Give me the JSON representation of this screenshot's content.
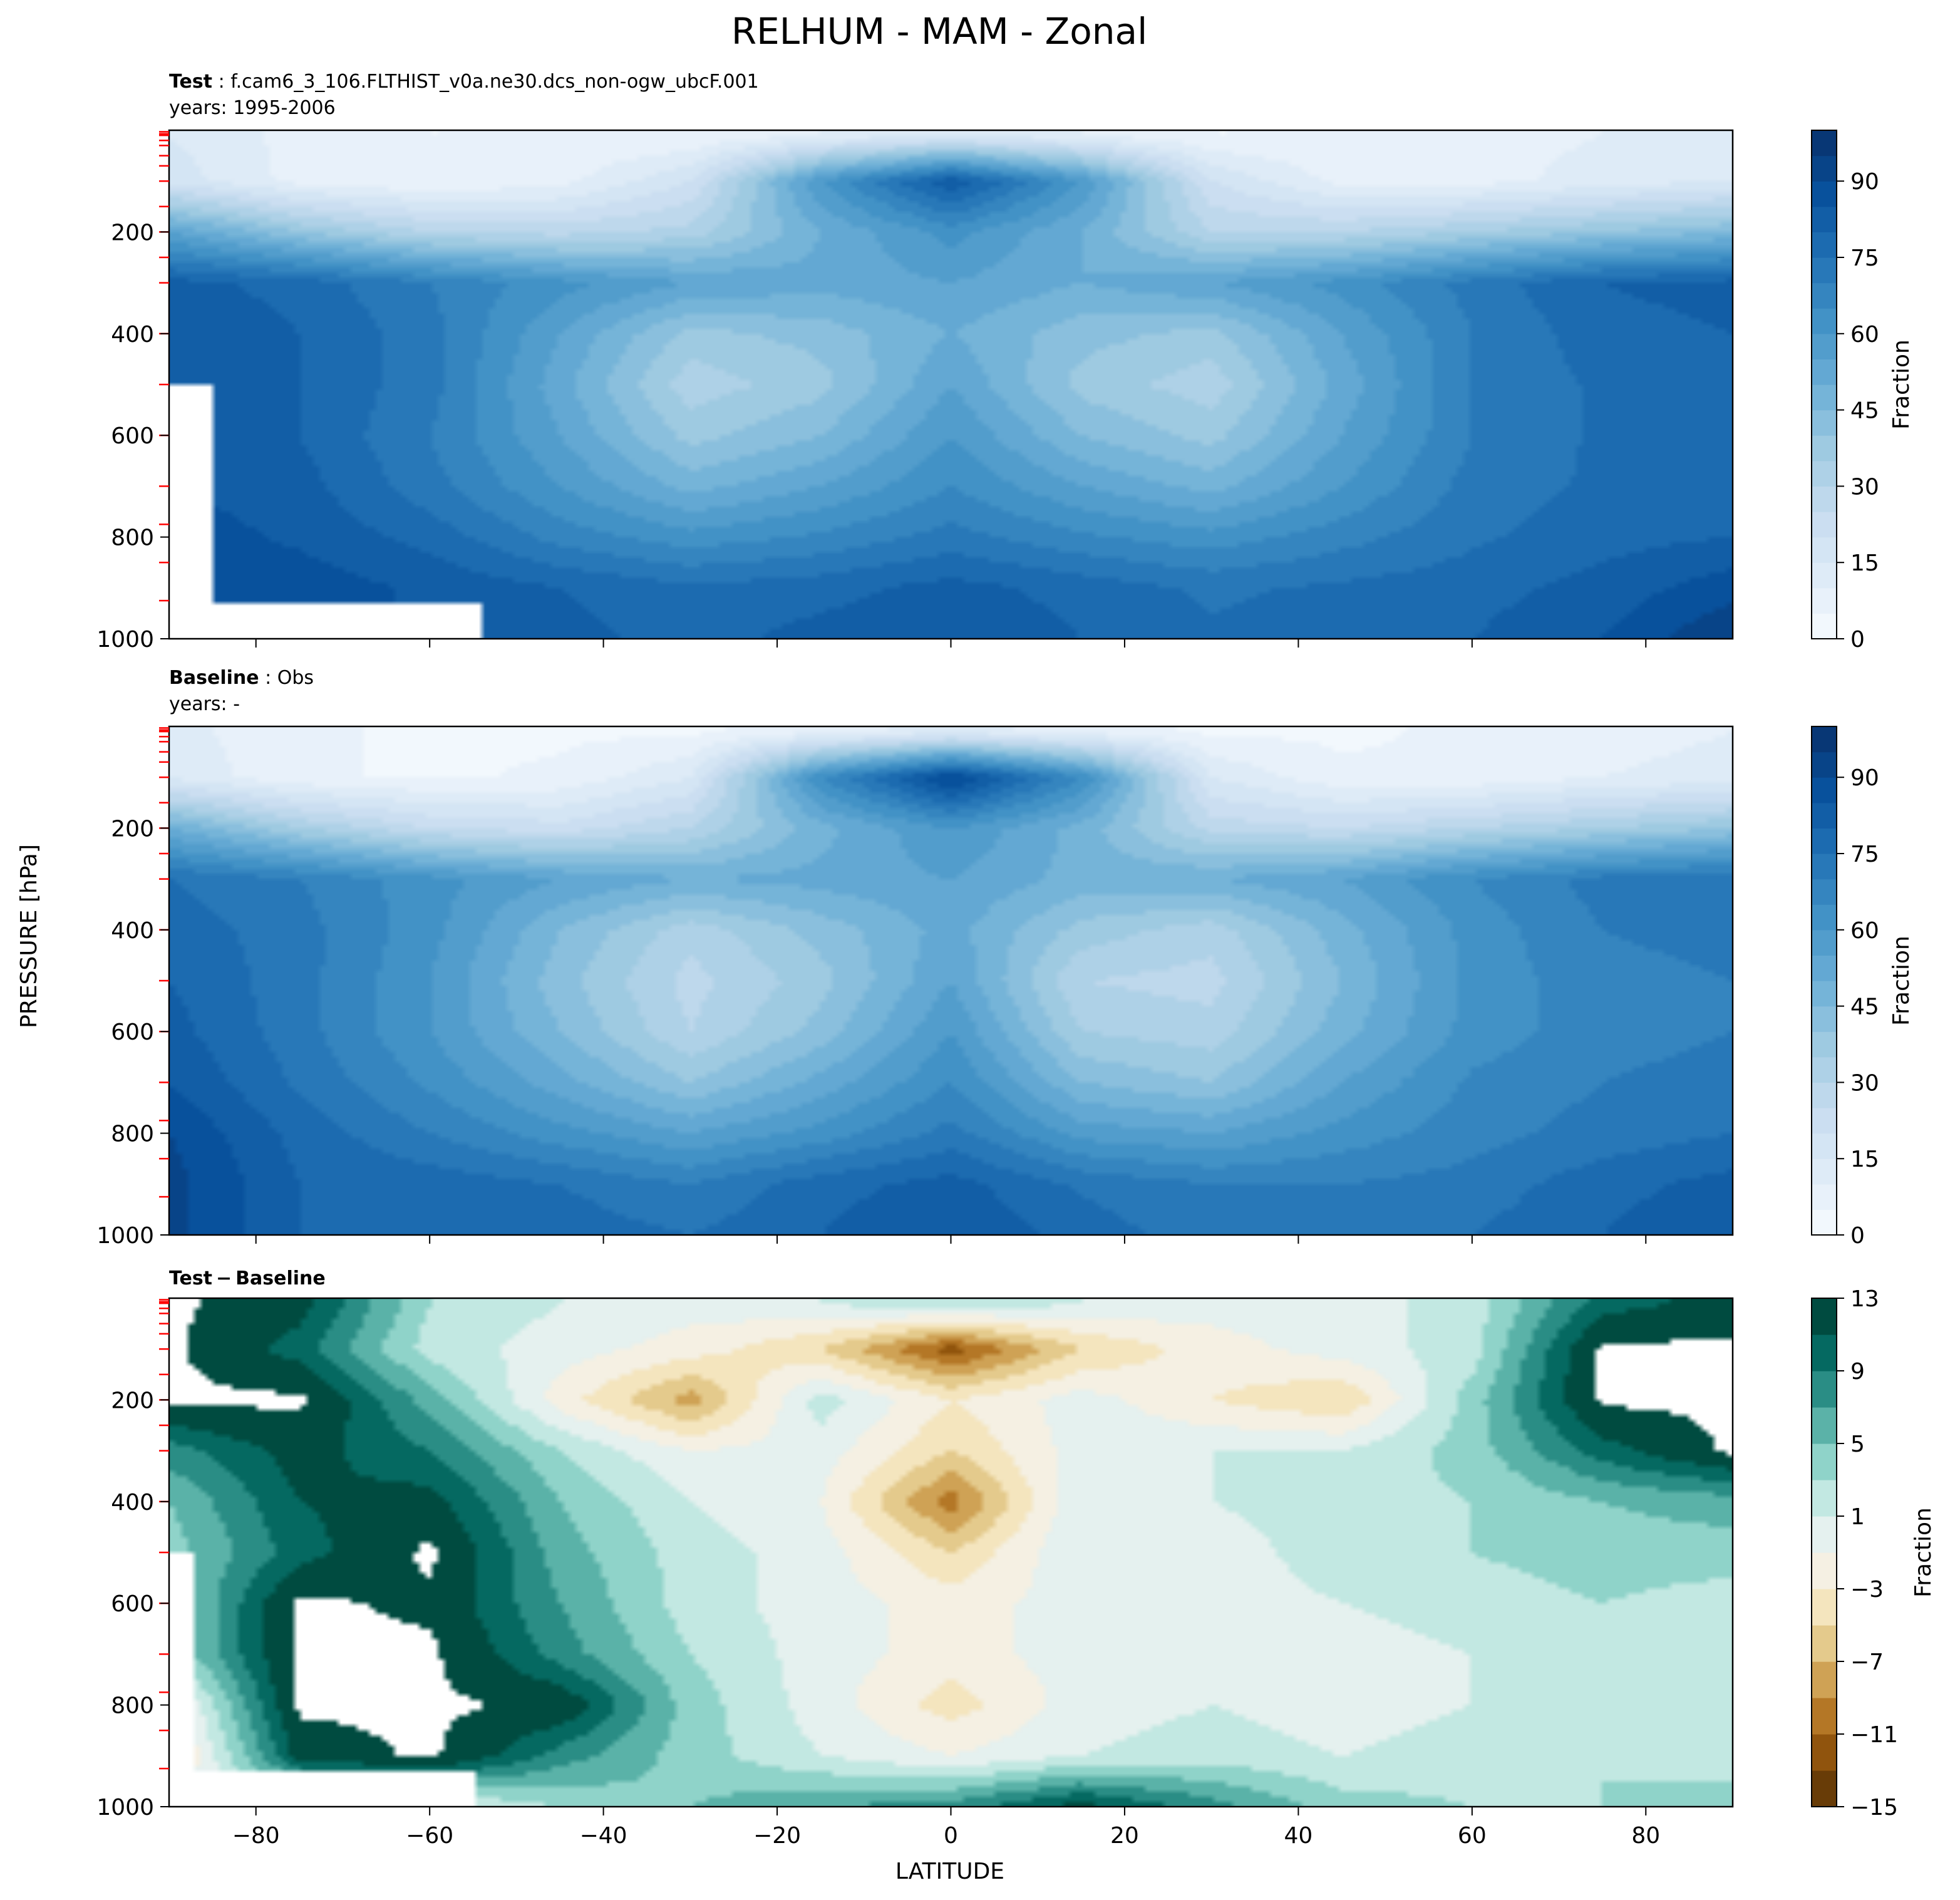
{
  "figure": {
    "title": "RELHUM - MAM - Zonal",
    "ylabel": "PRESSURE [hPa]",
    "xlabel": "LATITUDE"
  },
  "chart_data": [
    {
      "type": "heatmap",
      "panel": "test",
      "label_bold": "Test",
      "label_text": "f.cam6_3_106.FLTHIST_v0a.ne30.dcs_non-ogw_ubcF.001",
      "years": "years: 1995-2006",
      "xlim": [
        -90,
        90
      ],
      "ylim": [
        1000,
        0
      ],
      "yticks": [
        200,
        400,
        600,
        800,
        1000
      ],
      "xticks": [
        -80,
        -60,
        -40,
        -20,
        0,
        20,
        40,
        60,
        80
      ],
      "colorbar": {
        "label": "Fraction",
        "range": [
          0,
          100
        ],
        "ticks": [
          0,
          15,
          30,
          45,
          60,
          75,
          90
        ],
        "cmap": "Blues"
      },
      "lat": [
        -90,
        -75,
        -60,
        -45,
        -30,
        -15,
        0,
        15,
        30,
        45,
        60,
        75,
        90
      ],
      "plev": [
        10,
        100,
        200,
        300,
        400,
        500,
        600,
        700,
        800,
        900,
        1000
      ],
      "values": [
        [
          15,
          8,
          5,
          5,
          5,
          10,
          15,
          10,
          5,
          5,
          8,
          10,
          12
        ],
        [
          18,
          8,
          5,
          8,
          20,
          60,
          85,
          60,
          20,
          8,
          8,
          12,
          15
        ],
        [
          55,
          40,
          30,
          28,
          32,
          50,
          62,
          50,
          30,
          30,
          35,
          40,
          45
        ],
        [
          82,
          78,
          70,
          62,
          55,
          52,
          55,
          50,
          55,
          62,
          72,
          80,
          82
        ],
        [
          85,
          80,
          72,
          55,
          38,
          42,
          50,
          42,
          38,
          55,
          70,
          78,
          80
        ],
        [
          85,
          80,
          72,
          52,
          32,
          38,
          55,
          38,
          32,
          52,
          70,
          76,
          78
        ],
        [
          85,
          80,
          70,
          55,
          38,
          45,
          60,
          45,
          38,
          55,
          70,
          76,
          78
        ],
        [
          85,
          82,
          72,
          60,
          48,
          55,
          65,
          55,
          48,
          60,
          72,
          76,
          78
        ],
        [
          88,
          84,
          78,
          68,
          62,
          66,
          72,
          66,
          62,
          68,
          74,
          78,
          80
        ],
        [
          88,
          88,
          84,
          80,
          76,
          78,
          82,
          78,
          74,
          76,
          78,
          82,
          88
        ],
        [
          88,
          88,
          84,
          82,
          78,
          82,
          85,
          80,
          76,
          78,
          80,
          85,
          95
        ]
      ],
      "missing": [
        {
          "lat": [
            -90,
            -54
          ],
          "plev": [
            930,
            1000
          ]
        },
        {
          "lat": [
            -90,
            -85
          ],
          "plev": [
            500,
            930
          ]
        }
      ]
    },
    {
      "type": "heatmap",
      "panel": "baseline",
      "label_bold": "Baseline",
      "label_text": "Obs",
      "years": "years: -",
      "xlim": [
        -90,
        90
      ],
      "ylim": [
        1000,
        0
      ],
      "yticks": [
        200,
        400,
        600,
        800,
        1000
      ],
      "xticks": [
        -80,
        -60,
        -40,
        -20,
        0,
        20,
        40,
        60,
        80
      ],
      "colorbar": {
        "label": "Fraction",
        "range": [
          0,
          100
        ],
        "ticks": [
          0,
          15,
          30,
          45,
          60,
          75,
          90
        ],
        "cmap": "Blues"
      },
      "lat": [
        -90,
        -75,
        -60,
        -45,
        -30,
        -15,
        0,
        15,
        30,
        45,
        60,
        75,
        90
      ],
      "plev": [
        10,
        100,
        200,
        300,
        400,
        500,
        600,
        700,
        800,
        900,
        1000
      ],
      "values": [
        [
          12,
          6,
          4,
          4,
          4,
          8,
          12,
          8,
          4,
          4,
          6,
          8,
          10
        ],
        [
          14,
          6,
          4,
          6,
          15,
          65,
          92,
          65,
          15,
          6,
          6,
          10,
          12
        ],
        [
          50,
          35,
          25,
          22,
          30,
          48,
          60,
          48,
          28,
          25,
          30,
          35,
          40
        ],
        [
          75,
          70,
          62,
          55,
          50,
          52,
          55,
          48,
          50,
          55,
          65,
          72,
          75
        ],
        [
          78,
          72,
          62,
          45,
          32,
          42,
          52,
          38,
          32,
          48,
          62,
          70,
          72
        ],
        [
          80,
          72,
          60,
          42,
          28,
          38,
          55,
          30,
          28,
          45,
          62,
          68,
          70
        ],
        [
          82,
          72,
          60,
          45,
          30,
          42,
          60,
          35,
          32,
          48,
          62,
          68,
          70
        ],
        [
          85,
          74,
          64,
          52,
          40,
          52,
          65,
          45,
          40,
          55,
          66,
          70,
          72
        ],
        [
          90,
          78,
          70,
          62,
          55,
          62,
          72,
          58,
          55,
          62,
          68,
          72,
          75
        ],
        [
          92,
          80,
          78,
          75,
          70,
          78,
          82,
          74,
          70,
          70,
          72,
          78,
          82
        ],
        [
          92,
          80,
          78,
          78,
          75,
          80,
          85,
          78,
          72,
          72,
          75,
          80,
          85
        ]
      ],
      "missing": []
    },
    {
      "type": "heatmap",
      "panel": "difference",
      "label_bold": "Test − Baseline",
      "label_text": "",
      "years": "",
      "xlim": [
        -90,
        90
      ],
      "ylim": [
        1000,
        0
      ],
      "yticks": [
        200,
        400,
        600,
        800,
        1000
      ],
      "xticks": [
        -80,
        -60,
        -40,
        -20,
        0,
        20,
        40,
        60,
        80
      ],
      "colorbar": {
        "label": "Fraction",
        "range": [
          -15,
          13
        ],
        "ticks": [
          13,
          9,
          5,
          1,
          -3,
          -7,
          -11,
          -15
        ],
        "cmap": "BrBG"
      },
      "lat": [
        -90,
        -75,
        -60,
        -45,
        -30,
        -15,
        0,
        15,
        30,
        45,
        60,
        75,
        90
      ],
      "plev": [
        10,
        100,
        200,
        300,
        400,
        500,
        600,
        700,
        800,
        900,
        1000
      ],
      "values": [
        [
          14,
          12,
          3,
          1,
          0,
          1,
          3,
          1,
          0,
          0,
          2,
          10,
          12
        ],
        [
          14,
          10,
          2,
          0,
          -2,
          -5,
          -12,
          -5,
          -2,
          0,
          2,
          14,
          14
        ],
        [
          14,
          14,
          6,
          -2,
          -8,
          2,
          -3,
          0,
          -3,
          -5,
          4,
          14,
          14
        ],
        [
          8,
          12,
          9,
          3,
          -1,
          0,
          -5,
          0,
          1,
          1,
          4,
          10,
          14
        ],
        [
          5,
          11,
          12,
          5,
          1,
          -1,
          -10,
          1,
          1,
          2,
          3,
          5,
          6
        ],
        [
          4,
          10,
          14,
          6,
          2,
          0,
          -5,
          1,
          0,
          2,
          3,
          4,
          4
        ],
        [
          3,
          14,
          13,
          7,
          2,
          0,
          -2,
          0,
          0,
          1,
          2,
          3,
          2
        ],
        [
          3,
          14,
          14,
          8,
          3,
          0,
          -2,
          0,
          -1,
          0,
          1,
          2,
          2
        ],
        [
          -3,
          14,
          14,
          13,
          4,
          0,
          -4,
          0,
          1,
          0,
          1,
          2,
          1
        ],
        [
          -5,
          12,
          14,
          8,
          4,
          1,
          -1,
          1,
          2,
          1,
          2,
          3,
          2
        ],
        [
          0,
          0,
          0,
          3,
          5,
          7,
          8,
          12,
          8,
          4,
          3,
          3,
          4
        ]
      ],
      "missing": [
        {
          "lat": [
            -90,
            -55
          ],
          "plev": [
            930,
            1000
          ]
        },
        {
          "lat": [
            -90,
            -87
          ],
          "plev": [
            500,
            930
          ]
        }
      ]
    }
  ],
  "colors": {
    "blues": [
      "#f7fbff",
      "#deebf7",
      "#c6dbef",
      "#9ecae1",
      "#6baed6",
      "#4292c6",
      "#2171b5",
      "#08519c",
      "#08306b"
    ],
    "brbg": [
      "#543005",
      "#8c510a",
      "#bf812d",
      "#dfc27d",
      "#f6e8c3",
      "#f5f5f5",
      "#c7eae5",
      "#80cdc1",
      "#35978f",
      "#01665e",
      "#003c30"
    ],
    "level_tick": "#ff0000"
  }
}
